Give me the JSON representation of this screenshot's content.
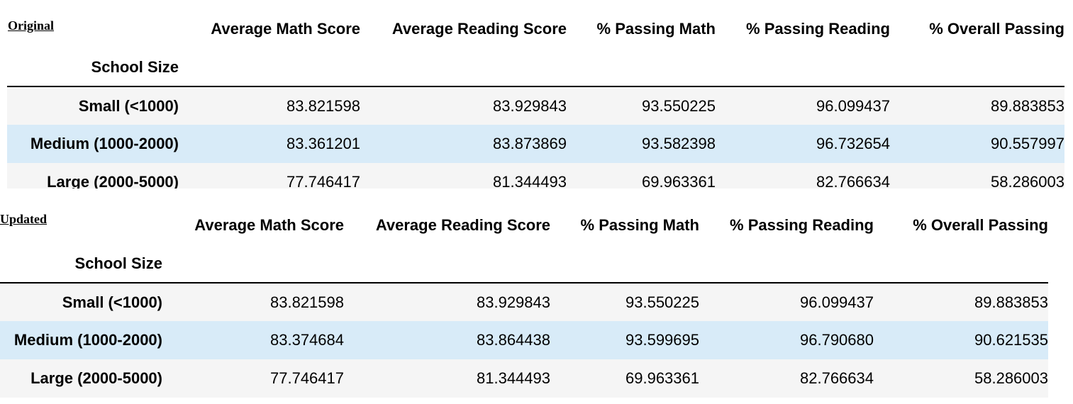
{
  "tables": [
    {
      "caption": "Original",
      "columns": [
        "Average Math Score",
        "Average Reading Score",
        "% Passing Math",
        "% Passing Reading",
        "% Overall Passing"
      ],
      "index_name": "School Size",
      "rows": [
        {
          "label": "Small (<1000)",
          "values": [
            "83.821598",
            "83.929843",
            "93.550225",
            "96.099437",
            "89.883853"
          ]
        },
        {
          "label": "Medium (1000-2000)",
          "values": [
            "83.361201",
            "83.873869",
            "93.582398",
            "96.732654",
            "90.557997"
          ]
        },
        {
          "label": "Large (2000-5000)",
          "values": [
            "77.746417",
            "81.344493",
            "69.963361",
            "82.766634",
            "58.286003"
          ]
        }
      ]
    },
    {
      "caption": "Updated",
      "columns": [
        "Average Math Score",
        "Average Reading Score",
        "% Passing Math",
        "% Passing Reading",
        "% Overall Passing"
      ],
      "index_name": "School Size",
      "rows": [
        {
          "label": "Small (<1000)",
          "values": [
            "83.821598",
            "83.929843",
            "93.550225",
            "96.099437",
            "89.883853"
          ]
        },
        {
          "label": "Medium (1000-2000)",
          "values": [
            "83.374684",
            "83.864438",
            "93.599695",
            "96.790680",
            "90.621535"
          ]
        },
        {
          "label": "Large (2000-5000)",
          "values": [
            "77.746417",
            "81.344493",
            "69.963361",
            "82.766634",
            "58.286003"
          ]
        }
      ]
    }
  ]
}
